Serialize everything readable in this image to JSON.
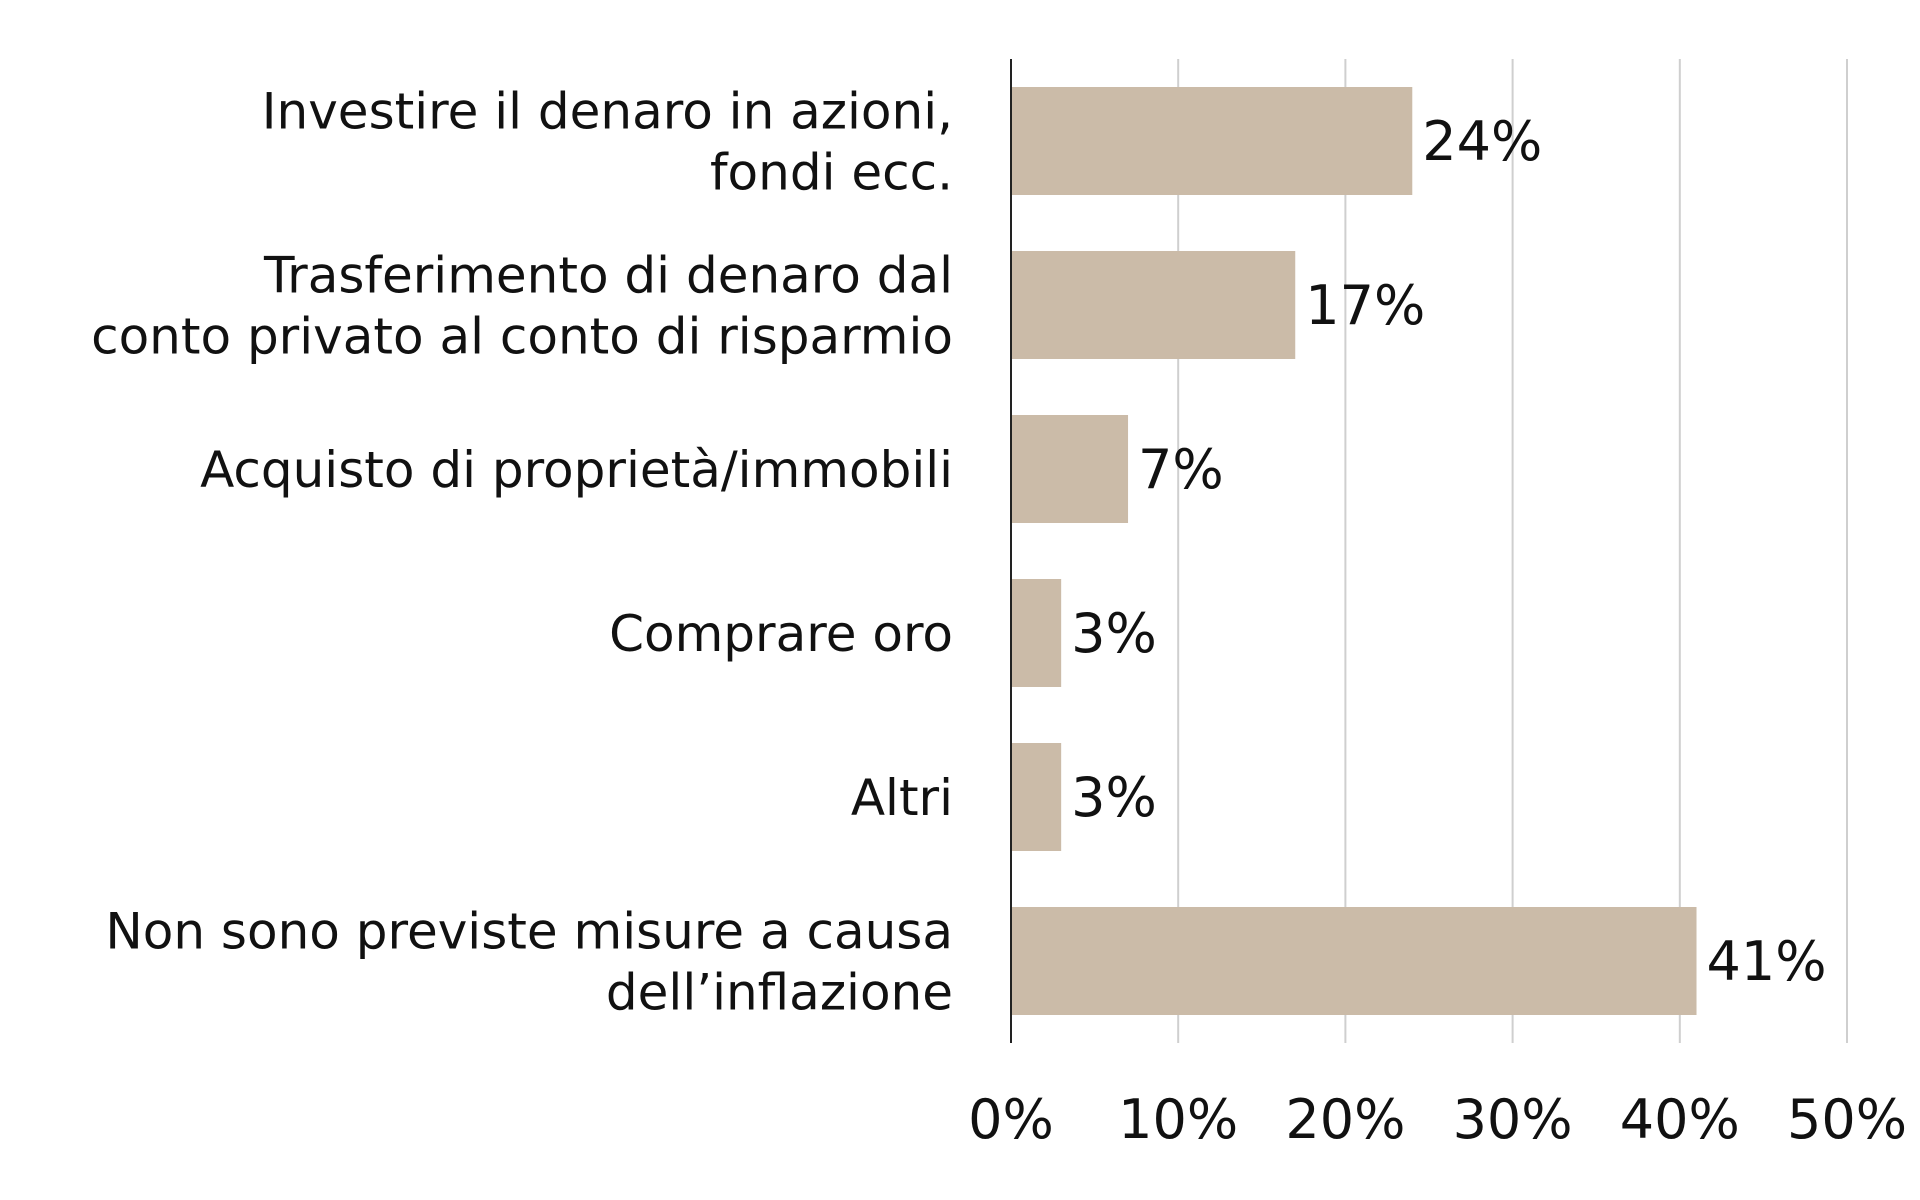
{
  "chart_data": {
    "type": "bar",
    "orientation": "horizontal",
    "categories": [
      [
        "Investire il denaro in azioni,",
        "fondi ecc."
      ],
      [
        "Trasferimento di denaro dal",
        "conto privato al conto di risparmio"
      ],
      [
        "Acquisto di proprietà/immobili"
      ],
      [
        "Comprare oro"
      ],
      [
        "Altri"
      ],
      [
        "Non sono previste misure a causa",
        "dell’inflazione"
      ]
    ],
    "values": [
      24,
      17,
      7,
      3,
      3,
      41
    ],
    "data_labels": [
      "24%",
      "17%",
      "7%",
      "3%",
      "3%",
      "41%"
    ],
    "xlim": [
      0,
      50
    ],
    "x_ticks": [
      0,
      10,
      20,
      30,
      40,
      50
    ],
    "x_tick_labels": [
      "0%",
      "10%",
      "20%",
      "30%",
      "40%",
      "50%"
    ],
    "grid": true,
    "title": "",
    "xlabel": "",
    "ylabel": "",
    "colors": {
      "bar": "#cbbba8",
      "grid": "#cfcfcf",
      "axis": "#222222",
      "text": "#111111"
    }
  }
}
